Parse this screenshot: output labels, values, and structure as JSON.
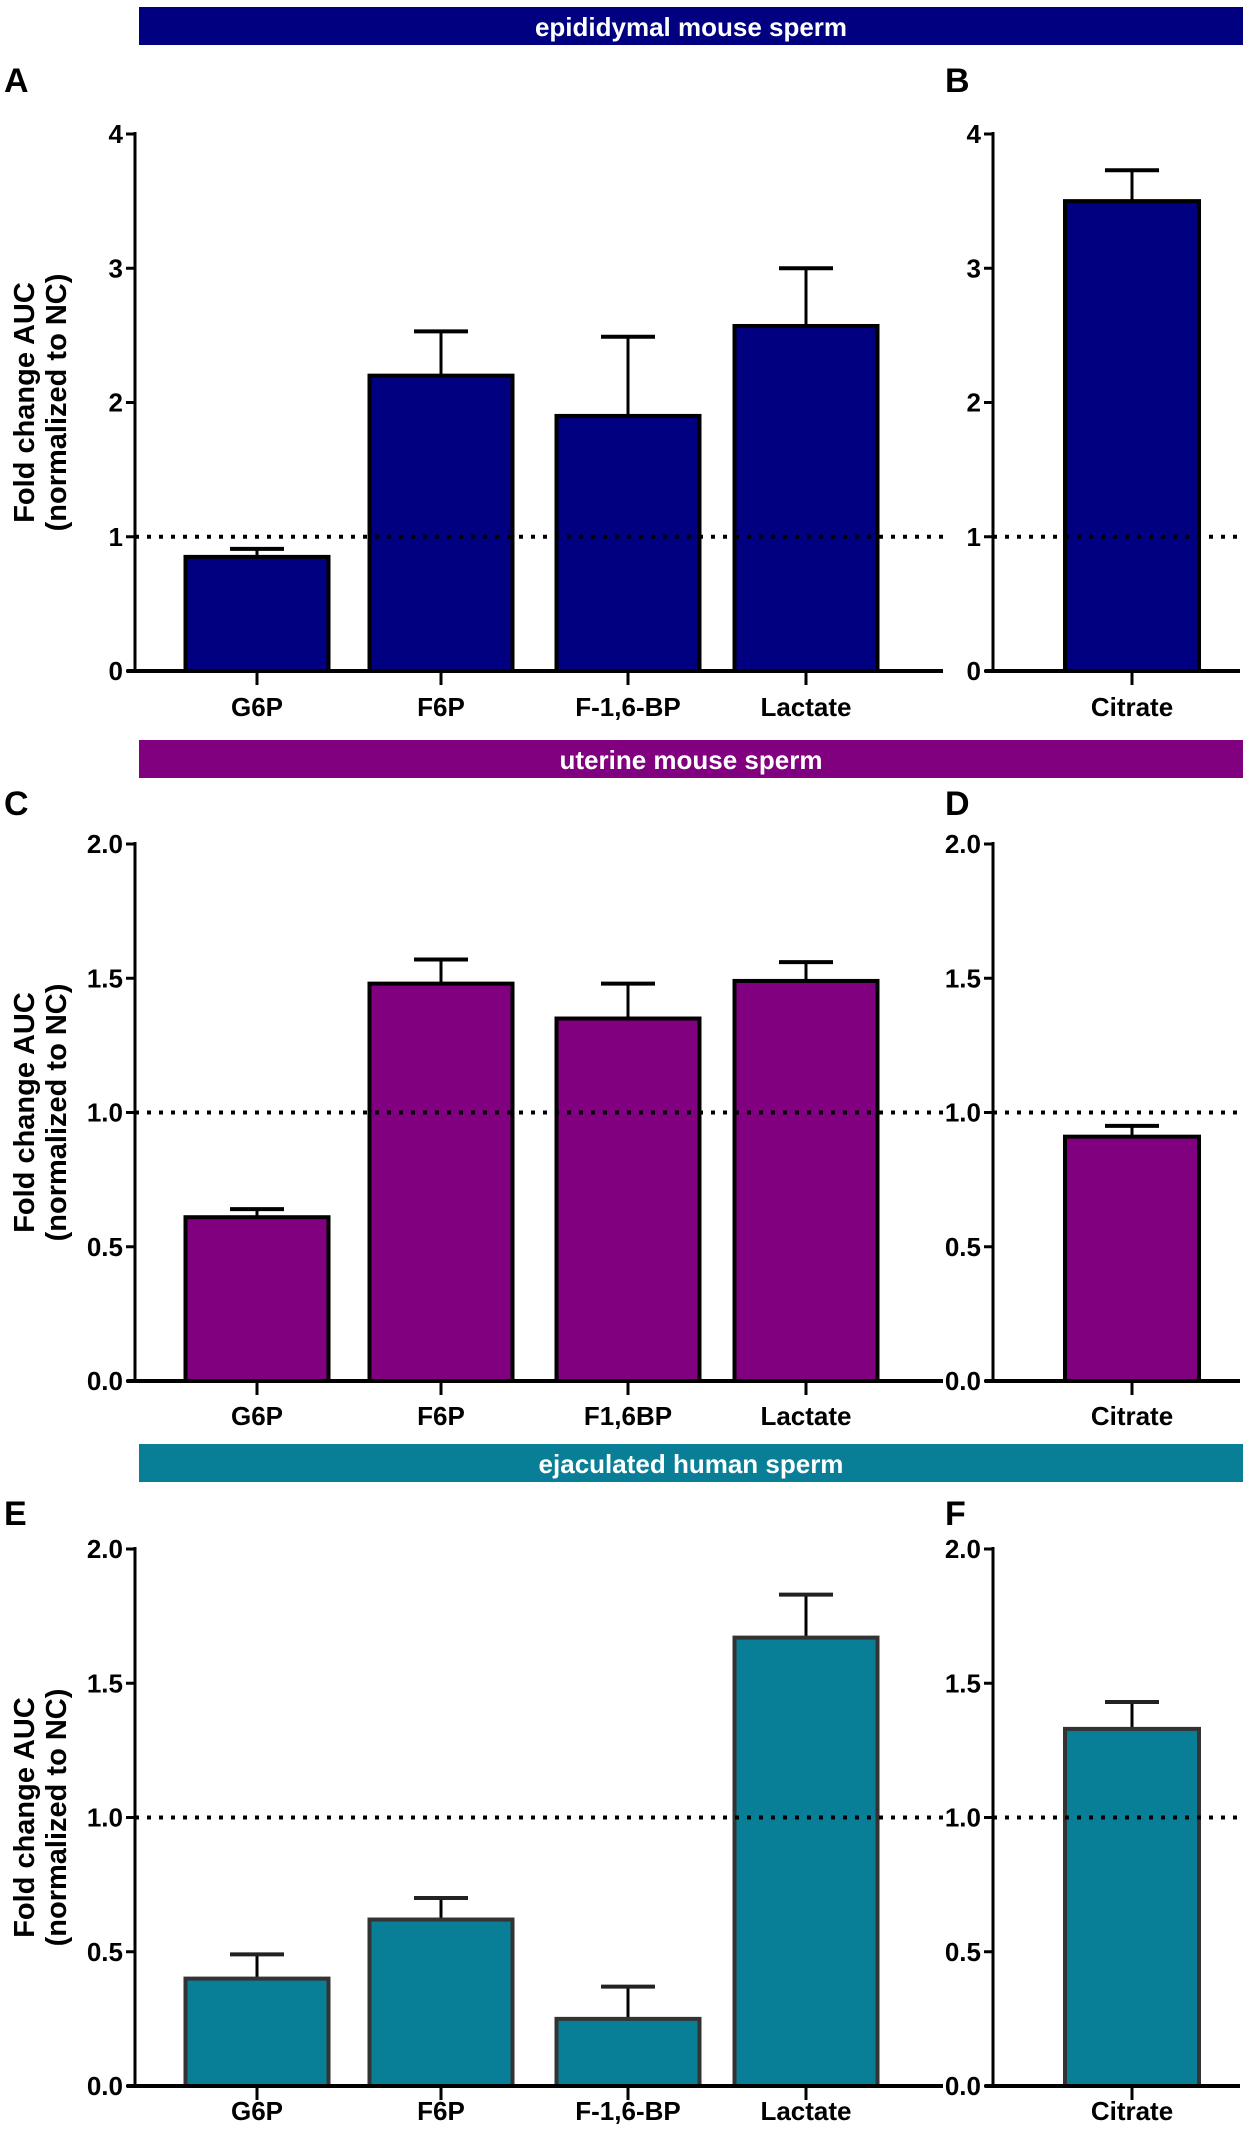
{
  "banners": [
    {
      "text": "epididymal mouse sperm",
      "color": "#000080"
    },
    {
      "text": "uterine mouse sperm",
      "color": "#800080"
    },
    {
      "text": "ejaculated human sperm",
      "color": "#087F96"
    }
  ],
  "chart_data": [
    {
      "panel": "A",
      "type": "bar",
      "group": "epididymal mouse sperm",
      "color": "#000080",
      "categories": [
        "G6P",
        "F6P",
        "F-1,6-BP",
        "Lactate"
      ],
      "values": [
        0.85,
        2.2,
        1.9,
        2.57
      ],
      "error_upper": [
        0.91,
        2.53,
        2.49,
        3.0
      ],
      "ylabel_line1": "Fold change AUC",
      "ylabel_line2": "(normalized to NC)",
      "ylim": [
        0,
        4
      ],
      "yticks": [
        "0",
        "1",
        "2",
        "3",
        "4"
      ],
      "reference_line": 1
    },
    {
      "panel": "B",
      "type": "bar",
      "group": "epididymal mouse sperm",
      "color": "#000080",
      "categories": [
        "Citrate"
      ],
      "values": [
        3.5
      ],
      "error_upper": [
        3.73
      ],
      "ylim": [
        0,
        4
      ],
      "yticks": [
        "0",
        "1",
        "2",
        "3",
        "4"
      ],
      "reference_line": 1
    },
    {
      "panel": "C",
      "type": "bar",
      "group": "uterine mouse sperm",
      "color": "#800080",
      "categories": [
        "G6P",
        "F6P",
        "F1,6BP",
        "Lactate"
      ],
      "values": [
        0.61,
        1.48,
        1.35,
        1.49
      ],
      "error_upper": [
        0.64,
        1.57,
        1.48,
        1.56
      ],
      "ylabel_line1": "Fold change AUC",
      "ylabel_line2": "(normalized to NC)",
      "ylim": [
        0,
        2
      ],
      "yticks": [
        "0.0",
        "0.5",
        "1.0",
        "1.5",
        "2.0"
      ],
      "reference_line": 1
    },
    {
      "panel": "D",
      "type": "bar",
      "group": "uterine mouse sperm",
      "color": "#800080",
      "categories": [
        "Citrate"
      ],
      "values": [
        0.91
      ],
      "error_upper": [
        0.95
      ],
      "ylim": [
        0,
        2
      ],
      "yticks": [
        "0.0",
        "0.5",
        "1.0",
        "1.5",
        "2.0"
      ],
      "reference_line": 1
    },
    {
      "panel": "E",
      "type": "bar",
      "group": "ejaculated human sperm",
      "color": "#087F96",
      "categories": [
        "G6P",
        "F6P",
        "F-1,6-BP",
        "Lactate"
      ],
      "values": [
        0.4,
        0.62,
        0.25,
        1.67
      ],
      "error_upper": [
        0.49,
        0.7,
        0.37,
        1.83
      ],
      "ylabel_line1": "Fold change AUC",
      "ylabel_line2": "(normalized to NC)",
      "ylim": [
        0,
        2
      ],
      "yticks": [
        "0.0",
        "0.5",
        "1.0",
        "1.5",
        "2.0"
      ],
      "reference_line": 1
    },
    {
      "panel": "F",
      "type": "bar",
      "group": "ejaculated human sperm",
      "color": "#087F96",
      "categories": [
        "Citrate"
      ],
      "values": [
        1.33
      ],
      "error_upper": [
        1.43
      ],
      "ylim": [
        0,
        2
      ],
      "yticks": [
        "0.0",
        "0.5",
        "1.0",
        "1.5",
        "2.0"
      ],
      "reference_line": 1
    }
  ]
}
